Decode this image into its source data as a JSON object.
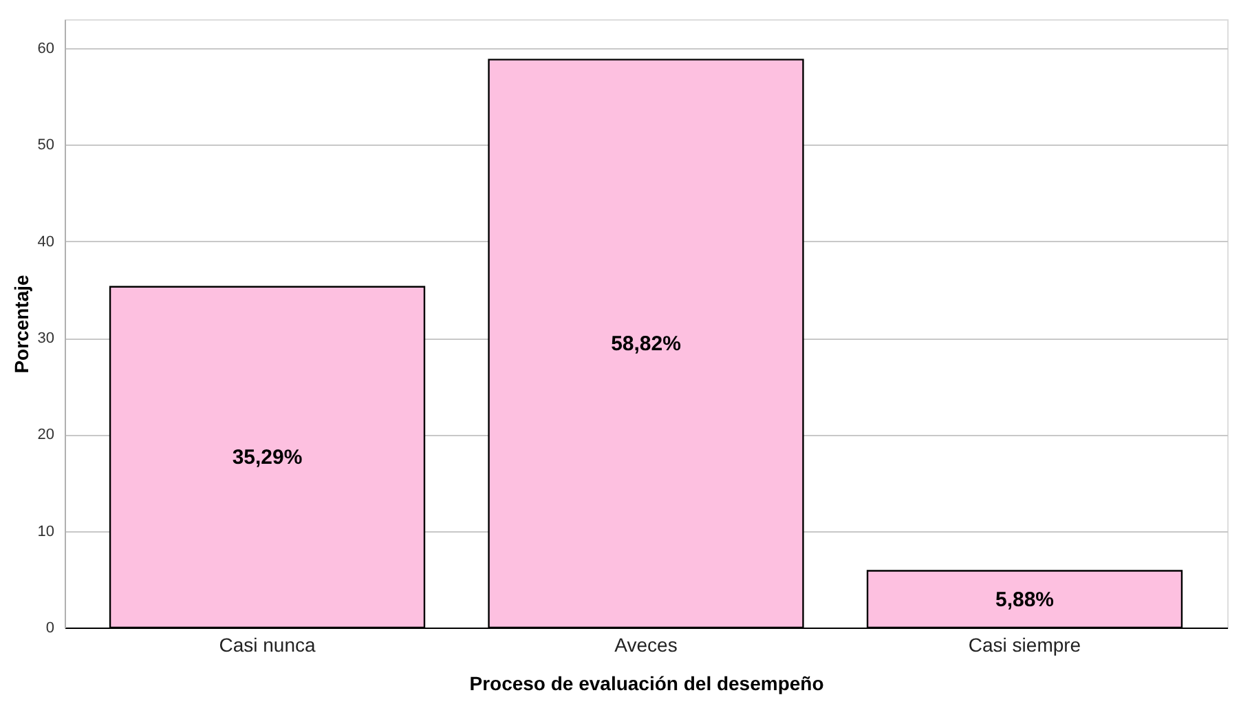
{
  "chart_data": {
    "type": "bar",
    "categories": [
      "Casi nunca",
      "Aveces",
      "Casi siempre"
    ],
    "values": [
      35.29,
      58.82,
      5.88
    ],
    "value_labels": [
      "35,29%",
      "58,82%",
      "5,88%"
    ],
    "color": "#fdc0e0",
    "xlabel": "Proceso de evaluación del desempeño",
    "ylabel": "Porcentaje",
    "ylim": [
      0,
      63
    ],
    "yticks": [
      0,
      10,
      20,
      30,
      40,
      50,
      60
    ],
    "grid": "y"
  }
}
